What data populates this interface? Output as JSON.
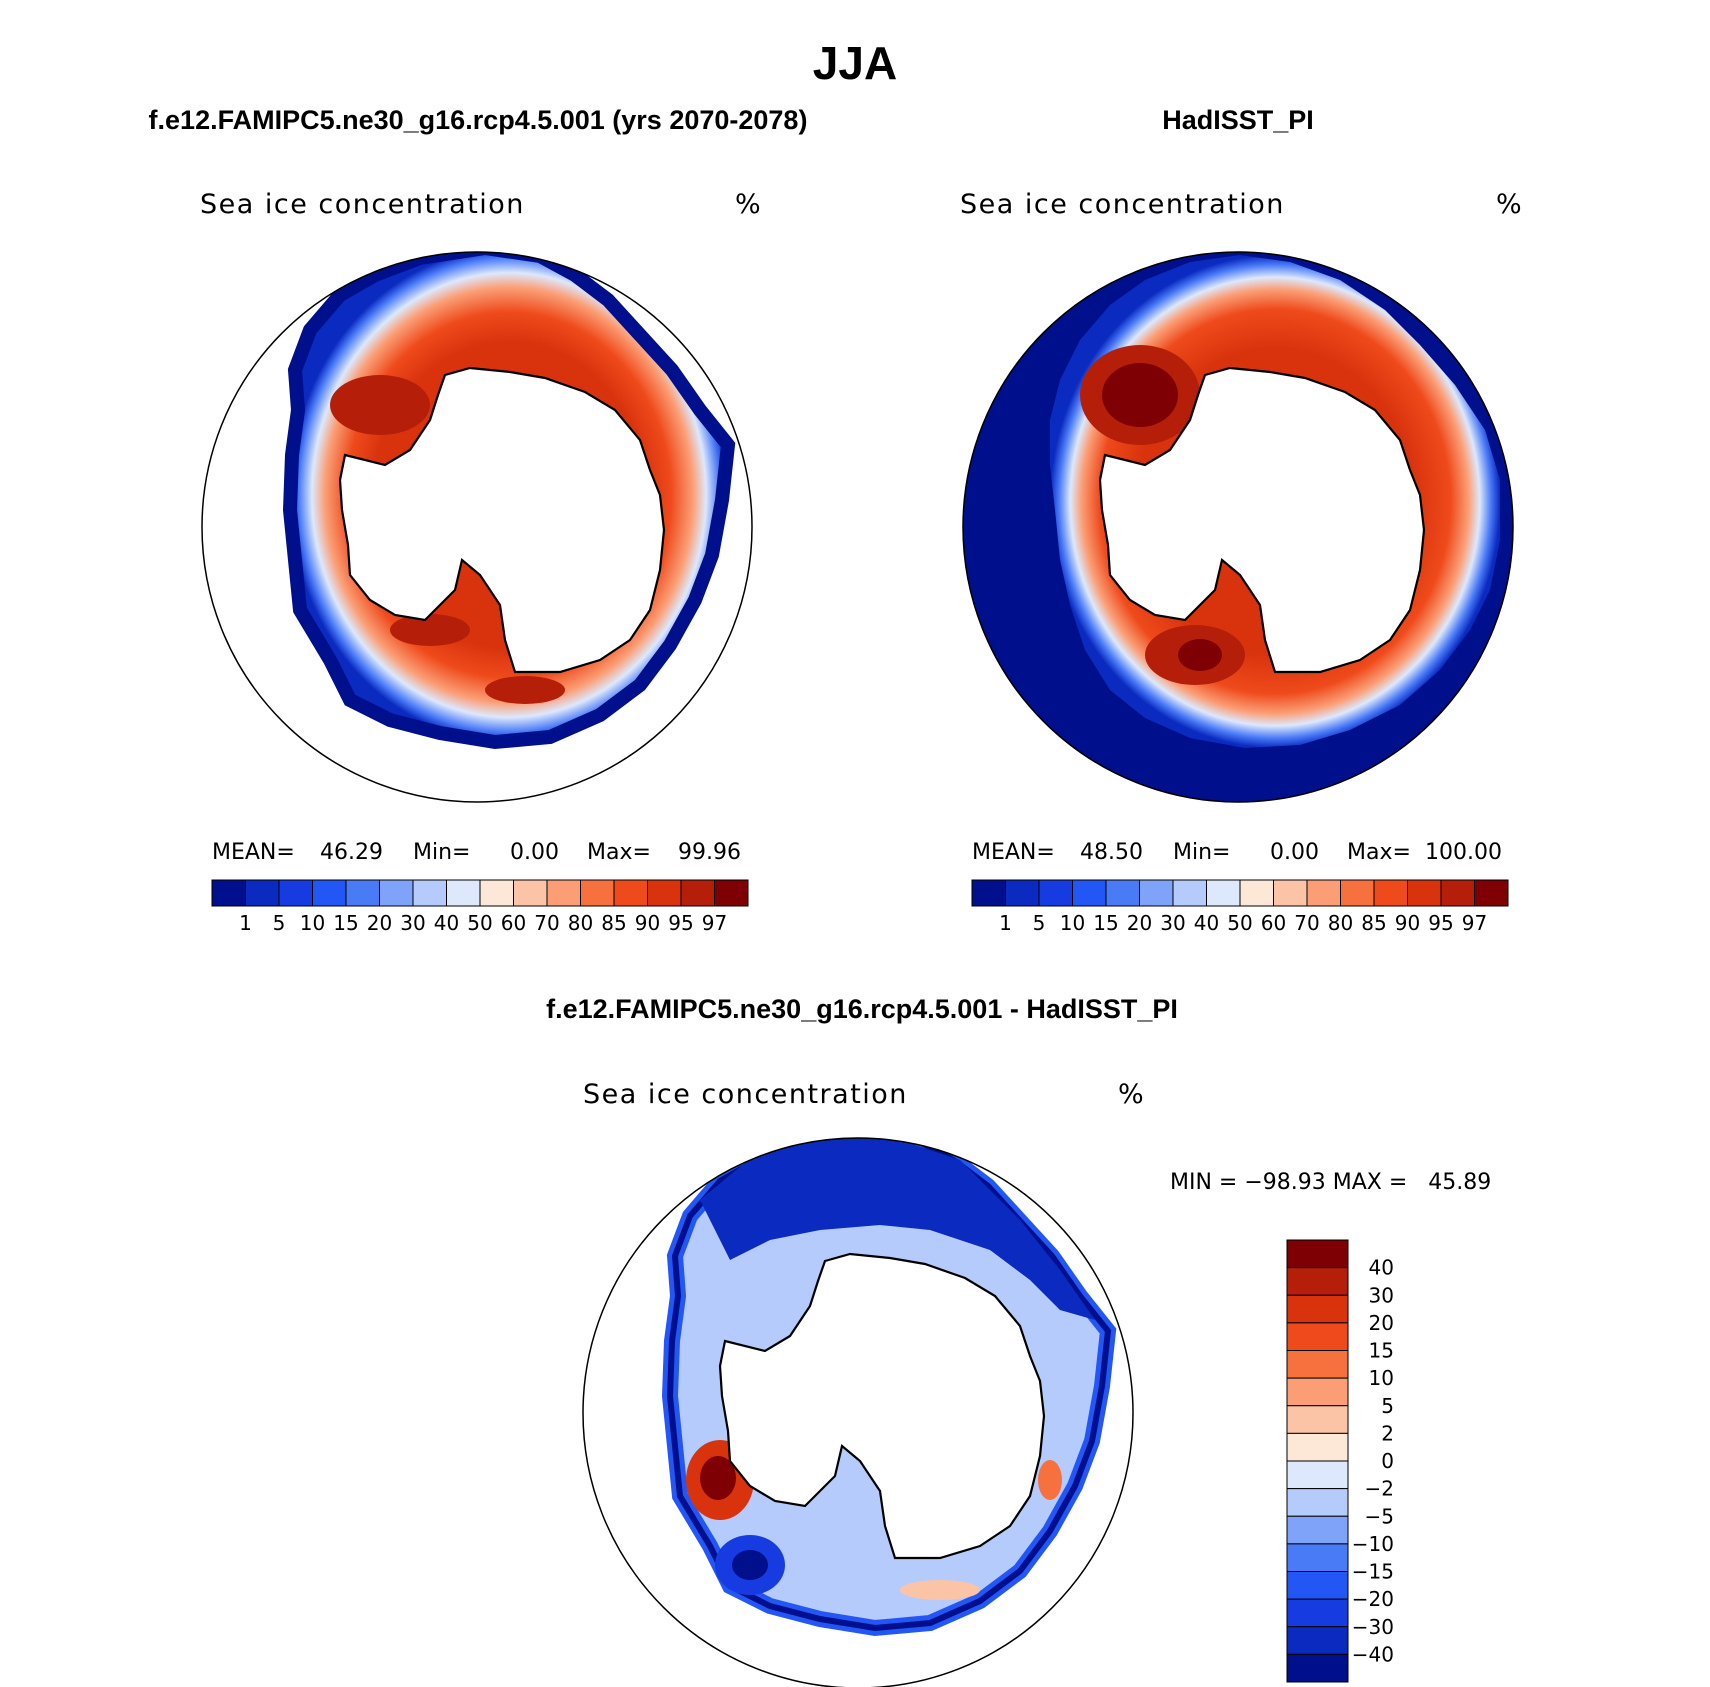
{
  "figure": {
    "season_title": "JJA"
  },
  "panels": [
    {
      "case_title": "f.e12.FAMIPC5.ne30_g16.rcp4.5.001 (yrs 2070-2078)",
      "variable": "Sea ice concentration",
      "units": "%",
      "stats": {
        "mean_label": "MEAN=",
        "mean": "46.29",
        "min_label": "Min=",
        "min": "0.00",
        "max_label": "Max=",
        "max": "99.96"
      },
      "field": "model"
    },
    {
      "case_title": "HadISST_PI",
      "variable": "Sea ice concentration",
      "units": "%",
      "stats": {
        "mean_label": "MEAN=",
        "mean": "48.50",
        "min_label": "Min=",
        "min": "0.00",
        "max_label": "Max=",
        "max": "100.00"
      },
      "field": "obs"
    },
    {
      "case_title": "f.e12.FAMIPC5.ne30_g16.rcp4.5.001 - HadISST_PI",
      "variable": "Sea ice concentration",
      "units": "%",
      "stats_line": "MIN = −98.93 MAX =   45.89",
      "field": "difference"
    }
  ],
  "colorbars": {
    "concentration": {
      "labels": [
        "1",
        "5",
        "10",
        "15",
        "20",
        "30",
        "40",
        "50",
        "60",
        "70",
        "80",
        "85",
        "90",
        "95",
        "97"
      ],
      "colors": [
        "#000f8c",
        "#0a2ac0",
        "#163be0",
        "#2256f5",
        "#4a7bf7",
        "#7fa3f8",
        "#b4cbfb",
        "#dde8fc",
        "#fde7d7",
        "#fcc4a6",
        "#fb9e76",
        "#f7713f",
        "#ef4a1b",
        "#d9330e",
        "#b51f0a",
        "#7e0004"
      ]
    },
    "difference": {
      "labels": [
        "40",
        "30",
        "20",
        "15",
        "10",
        "5",
        "2",
        "0",
        "−2",
        "−5",
        "−10",
        "−15",
        "−20",
        "−30",
        "−40"
      ],
      "colors": [
        "#7e0004",
        "#b51f0a",
        "#d9330e",
        "#ef4a1b",
        "#f7713f",
        "#fb9e76",
        "#fcc4a6",
        "#fde7d7",
        "#dde8fc",
        "#b4cbfb",
        "#7fa3f8",
        "#4a7bf7",
        "#2256f5",
        "#163be0",
        "#0a2ac0",
        "#000f8c"
      ]
    }
  }
}
